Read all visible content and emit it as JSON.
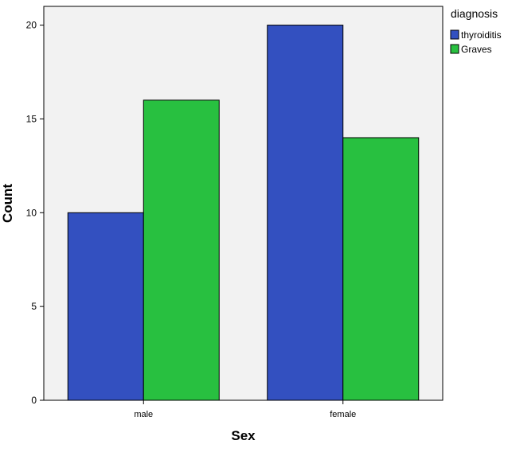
{
  "chart_data": {
    "type": "bar",
    "categories": [
      "male",
      "female"
    ],
    "series": [
      {
        "name": "thyroiditis",
        "color": "#3350c0",
        "values": [
          10,
          20
        ]
      },
      {
        "name": "Graves",
        "color": "#28c040",
        "values": [
          16,
          14
        ]
      }
    ],
    "title": "",
    "xlabel": "Sex",
    "ylabel": "Count",
    "ylim": [
      0,
      21
    ],
    "yticks": [
      0,
      5,
      10,
      15,
      20
    ],
    "legend": {
      "title": "diagnosis",
      "placement": "right"
    },
    "grid": false,
    "background": "#f2f2f2"
  }
}
